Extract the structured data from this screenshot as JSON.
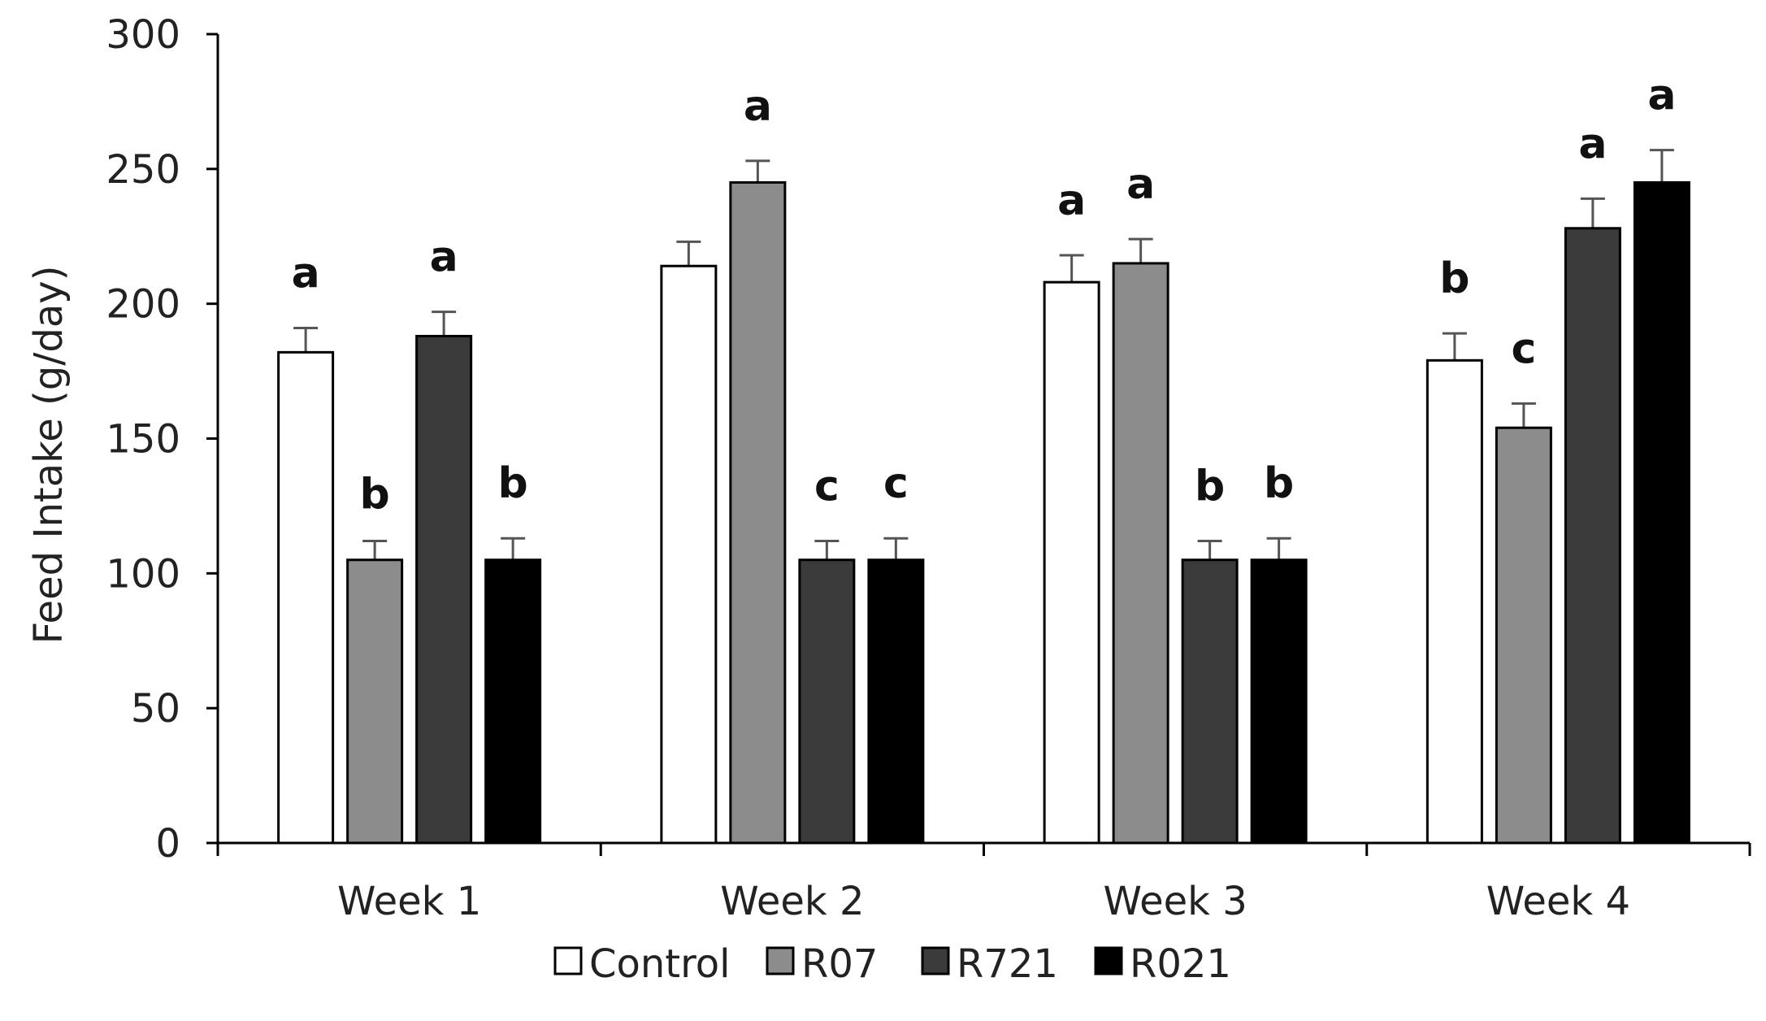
{
  "chart_data": {
    "type": "bar",
    "title": "",
    "xlabel": "",
    "ylabel": "Feed Intake   (g/day)",
    "ylim": [
      0,
      300
    ],
    "yticks": [
      "0",
      "50",
      "100",
      "150",
      "200",
      "250",
      "300"
    ],
    "ytick_values": [
      0,
      50,
      100,
      150,
      200,
      250,
      300
    ],
    "categories": [
      "Week 1",
      "Week 2",
      "Week 3",
      "Week 4"
    ],
    "legend_position": "bottom",
    "series": [
      {
        "name": "Control",
        "color": "#ffffff",
        "values": [
          182,
          214,
          208,
          179
        ],
        "errors": [
          9,
          9,
          10,
          10
        ],
        "letters": [
          "a",
          "",
          "a",
          "b"
        ]
      },
      {
        "name": "R07",
        "color": "#8c8c8c",
        "values": [
          105,
          245,
          215,
          154
        ],
        "errors": [
          7,
          8,
          9,
          9
        ],
        "letters": [
          "b",
          "a",
          "a",
          "c"
        ]
      },
      {
        "name": "R721",
        "color": "#3b3b3b",
        "values": [
          188,
          105,
          105,
          228
        ],
        "errors": [
          9,
          7,
          7,
          11
        ],
        "letters": [
          "a",
          "c",
          "b",
          "a"
        ]
      },
      {
        "name": "R021",
        "color": "#000000",
        "values": [
          105,
          105,
          105,
          245
        ],
        "errors": [
          8,
          8,
          8,
          12
        ],
        "letters": [
          "b",
          "c",
          "b",
          "a"
        ]
      }
    ]
  }
}
